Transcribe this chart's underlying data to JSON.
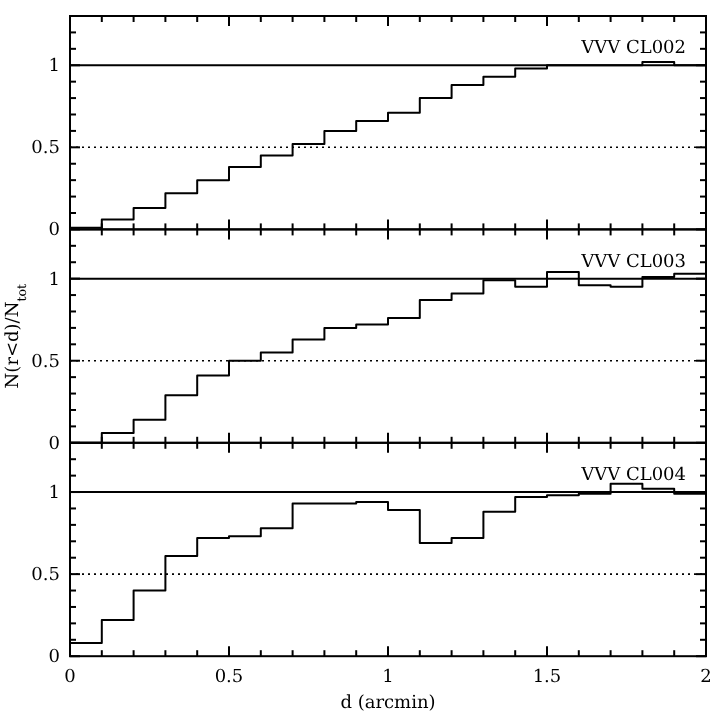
{
  "chart_data": [
    {
      "type": "step",
      "title": "VVV  CL002",
      "x": [
        0,
        0.1,
        0.2,
        0.3,
        0.4,
        0.5,
        0.6,
        0.7,
        0.8,
        0.9,
        1,
        1.1,
        1.2,
        1.3,
        1.4,
        1.5,
        1.6,
        1.7,
        1.8,
        1.9,
        2
      ],
      "values": [
        0.01,
        0.06,
        0.13,
        0.22,
        0.3,
        0.38,
        0.45,
        0.52,
        0.6,
        0.66,
        0.71,
        0.8,
        0.88,
        0.93,
        0.98,
        1.0,
        1.0,
        1.0,
        1.02,
        1.0,
        1.0
      ],
      "color": "#000000",
      "xlim": [
        0,
        2
      ],
      "ylim": [
        0,
        1.3
      ],
      "xticks": [
        0,
        {
          "value": 0.1,
          "label": null
        },
        {
          "value": 0.2,
          "label": null
        },
        {
          "value": 0.3,
          "label": null
        },
        {
          "value": 0.4,
          "label": null
        },
        0.5,
        {
          "value": 0.6,
          "label": null
        },
        {
          "value": 0.7,
          "label": null
        },
        {
          "value": 0.8,
          "label": null
        },
        {
          "value": 0.9,
          "label": null
        },
        1,
        {
          "value": 1.1,
          "label": null
        },
        {
          "value": 1.2,
          "label": null
        },
        {
          "value": 1.3,
          "label": null
        },
        {
          "value": 1.4,
          "label": null
        },
        1.5,
        {
          "value": 1.6,
          "label": null
        },
        {
          "value": 1.7,
          "label": null
        },
        {
          "value": 1.8,
          "label": null
        },
        {
          "value": 1.9,
          "label": null
        },
        2
      ],
      "yticks": [
        0,
        {
          "value": 0.1,
          "label": null
        },
        {
          "value": 0.2,
          "label": null
        },
        {
          "value": 0.3,
          "label": null
        },
        {
          "value": 0.4,
          "label": null
        },
        0.5,
        {
          "value": 0.6,
          "label": null
        },
        {
          "value": 0.7,
          "label": null
        },
        {
          "value": 0.8,
          "label": null
        },
        {
          "value": 0.9,
          "label": null
        },
        1,
        {
          "value": 1.1,
          "label": null
        },
        {
          "value": 1.2,
          "label": null
        }
      ],
      "tick_labels": "y",
      "grid": false,
      "ref_lines": [
        {
          "axis": "y",
          "value": 1,
          "line_style": "solid"
        },
        {
          "axis": "y",
          "value": 0.5,
          "line_style": "dotted"
        }
      ]
    },
    {
      "type": "step",
      "title": "VVV  CL003",
      "ylabel": "N(r<d)/N$_{tot}$",
      "x": [
        0,
        0.1,
        0.2,
        0.3,
        0.4,
        0.5,
        0.6,
        0.7,
        0.8,
        0.9,
        1,
        1.1,
        1.2,
        1.3,
        1.4,
        1.5,
        1.6,
        1.7,
        1.8,
        1.9,
        2
      ],
      "values": [
        0.0,
        0.06,
        0.14,
        0.29,
        0.41,
        0.5,
        0.55,
        0.63,
        0.7,
        0.72,
        0.76,
        0.87,
        0.91,
        0.99,
        0.95,
        1.04,
        0.96,
        0.95,
        1.01,
        1.03,
        1.03
      ],
      "color": "#000000",
      "xlim": [
        0,
        2
      ],
      "ylim": [
        0,
        1.3
      ],
      "xticks": [
        0,
        {
          "value": 0.1,
          "label": null
        },
        {
          "value": 0.2,
          "label": null
        },
        {
          "value": 0.3,
          "label": null
        },
        {
          "value": 0.4,
          "label": null
        },
        0.5,
        {
          "value": 0.6,
          "label": null
        },
        {
          "value": 0.7,
          "label": null
        },
        {
          "value": 0.8,
          "label": null
        },
        {
          "value": 0.9,
          "label": null
        },
        1,
        {
          "value": 1.1,
          "label": null
        },
        {
          "value": 1.2,
          "label": null
        },
        {
          "value": 1.3,
          "label": null
        },
        {
          "value": 1.4,
          "label": null
        },
        1.5,
        {
          "value": 1.6,
          "label": null
        },
        {
          "value": 1.7,
          "label": null
        },
        {
          "value": 1.8,
          "label": null
        },
        {
          "value": 1.9,
          "label": null
        },
        2
      ],
      "yticks": [
        0,
        {
          "value": 0.1,
          "label": null
        },
        {
          "value": 0.2,
          "label": null
        },
        {
          "value": 0.3,
          "label": null
        },
        {
          "value": 0.4,
          "label": null
        },
        0.5,
        {
          "value": 0.6,
          "label": null
        },
        {
          "value": 0.7,
          "label": null
        },
        {
          "value": 0.8,
          "label": null
        },
        {
          "value": 0.9,
          "label": null
        },
        1,
        {
          "value": 1.1,
          "label": null
        },
        {
          "value": 1.2,
          "label": null
        }
      ],
      "tick_labels": "y",
      "grid": false,
      "ref_lines": [
        {
          "axis": "y",
          "value": 1,
          "line_style": "solid"
        },
        {
          "axis": "y",
          "value": 0.5,
          "line_style": "dotted"
        }
      ]
    },
    {
      "type": "step",
      "title": "VVV  CL004",
      "xlabel": "d (arcmin)",
      "x": [
        0,
        0.1,
        0.2,
        0.3,
        0.4,
        0.5,
        0.6,
        0.7,
        0.8,
        0.9,
        1,
        1.1,
        1.2,
        1.3,
        1.4,
        1.5,
        1.6,
        1.7,
        1.8,
        1.9,
        2
      ],
      "values": [
        0.08,
        0.22,
        0.4,
        0.61,
        0.72,
        0.73,
        0.78,
        0.93,
        0.93,
        0.94,
        0.89,
        0.69,
        0.72,
        0.88,
        0.97,
        0.98,
        0.99,
        1.05,
        1.02,
        0.99,
        0.99
      ],
      "color": "#000000",
      "xlim": [
        0,
        2
      ],
      "ylim": [
        0,
        1.3
      ],
      "xticks": [
        0,
        {
          "value": 0.1,
          "label": null
        },
        {
          "value": 0.2,
          "label": null
        },
        {
          "value": 0.3,
          "label": null
        },
        {
          "value": 0.4,
          "label": null
        },
        0.5,
        {
          "value": 0.6,
          "label": null
        },
        {
          "value": 0.7,
          "label": null
        },
        {
          "value": 0.8,
          "label": null
        },
        {
          "value": 0.9,
          "label": null
        },
        1,
        {
          "value": 1.1,
          "label": null
        },
        {
          "value": 1.2,
          "label": null
        },
        {
          "value": 1.3,
          "label": null
        },
        {
          "value": 1.4,
          "label": null
        },
        1.5,
        {
          "value": 1.6,
          "label": null
        },
        {
          "value": 1.7,
          "label": null
        },
        {
          "value": 1.8,
          "label": null
        },
        {
          "value": 1.9,
          "label": null
        },
        2
      ],
      "yticks": [
        0,
        {
          "value": 0.1,
          "label": null
        },
        {
          "value": 0.2,
          "label": null
        },
        {
          "value": 0.3,
          "label": null
        },
        {
          "value": 0.4,
          "label": null
        },
        0.5,
        {
          "value": 0.6,
          "label": null
        },
        {
          "value": 0.7,
          "label": null
        },
        {
          "value": 0.8,
          "label": null
        },
        {
          "value": 0.9,
          "label": null
        },
        1,
        {
          "value": 1.1,
          "label": null
        },
        {
          "value": 1.2,
          "label": null
        }
      ],
      "grid": false,
      "ref_lines": [
        {
          "axis": "y",
          "value": 1,
          "line_style": "solid"
        },
        {
          "axis": "y",
          "value": 0.5,
          "line_style": "dotted"
        }
      ]
    }
  ]
}
